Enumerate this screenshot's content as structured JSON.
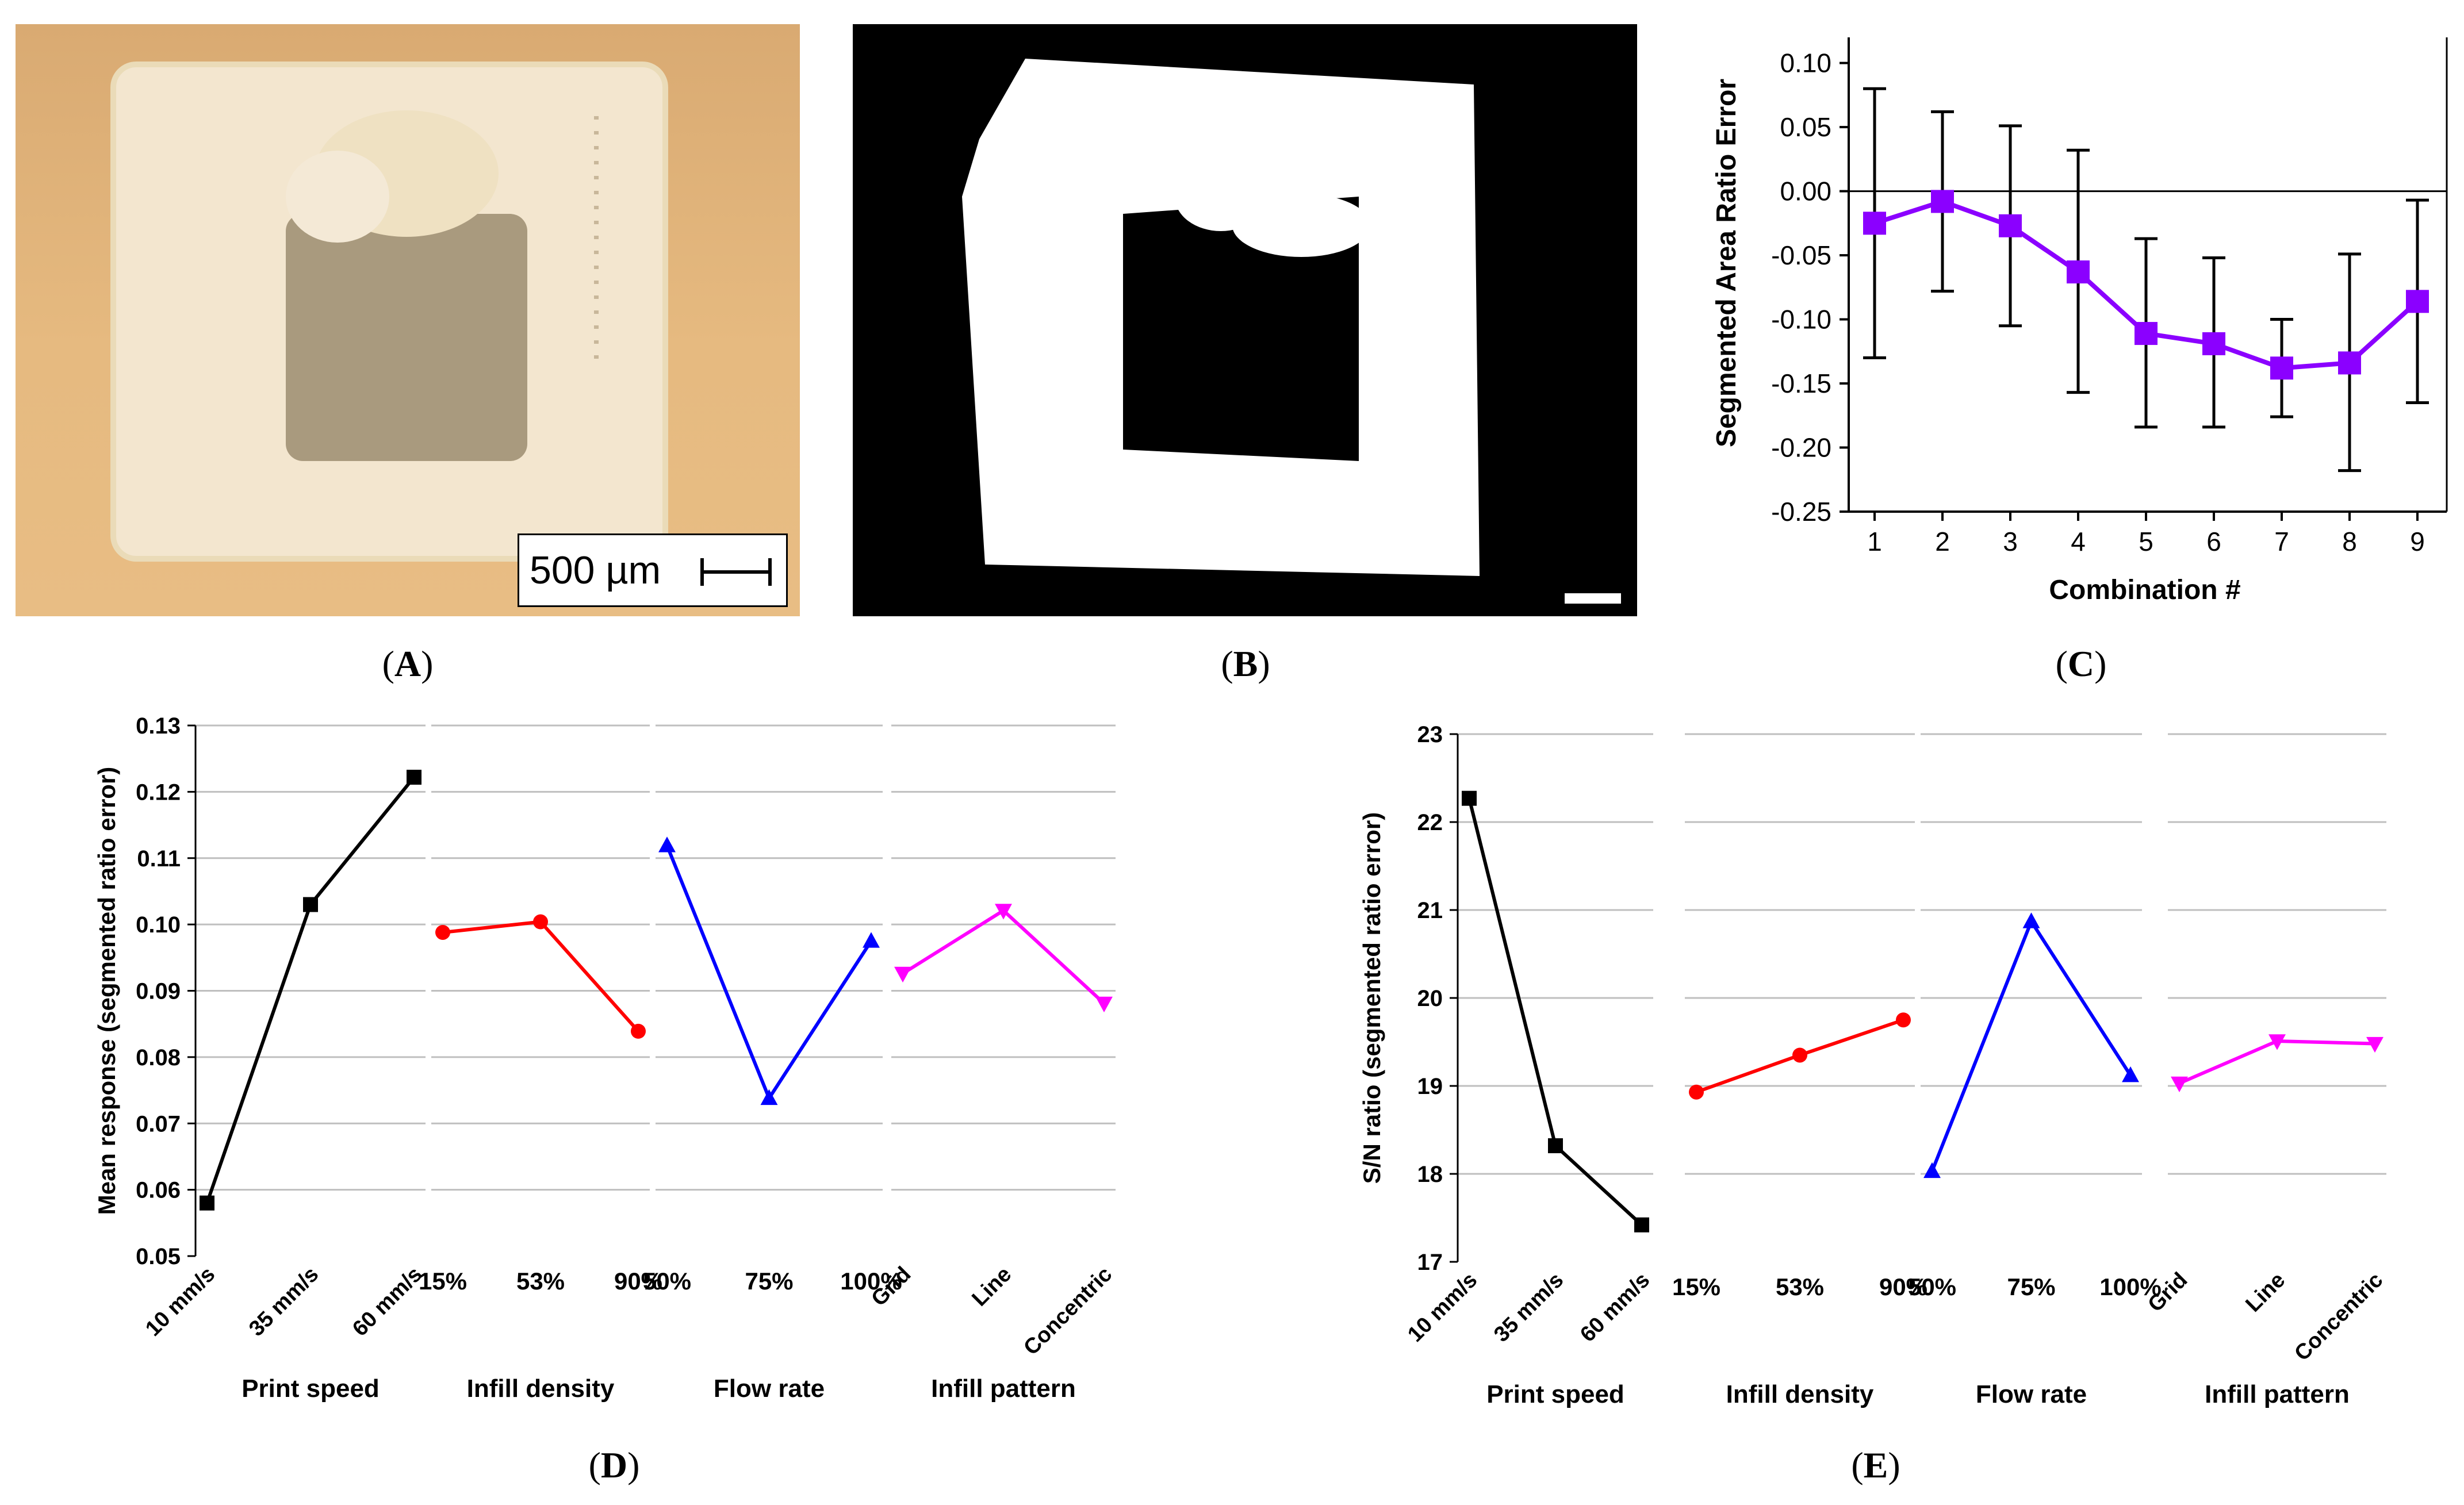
{
  "panels": {
    "a": {
      "label": "A",
      "scale_bar_text": "500 µm"
    },
    "b": {
      "label": "B"
    },
    "c": {
      "label": "C"
    },
    "d": {
      "label": "D"
    },
    "e": {
      "label": "E"
    }
  },
  "colors": {
    "purple": "#8b00ff",
    "black": "#000000",
    "red": "#ff0000",
    "blue": "#0000ff",
    "magenta": "#ff00ff",
    "grid": "#bfbfbf",
    "photo_bg": "#e2b57a",
    "photo_part": "#f3e6cf"
  },
  "chart_data": [
    {
      "id": "C",
      "type": "line",
      "xlabel": "Combination #",
      "ylabel": "Segmented Area Ratio Error",
      "x": [
        1,
        2,
        3,
        4,
        5,
        6,
        7,
        8,
        9
      ],
      "xticks": [
        "1",
        "2",
        "3",
        "4",
        "5",
        "6",
        "7",
        "8",
        "9"
      ],
      "values": [
        -0.025,
        -0.008,
        -0.027,
        -0.063,
        -0.111,
        -0.119,
        -0.138,
        -0.134,
        -0.086
      ],
      "error_upper": [
        0.08,
        0.062,
        0.051,
        0.032,
        -0.037,
        -0.052,
        -0.1,
        -0.049,
        -0.007
      ],
      "error_lower": [
        -0.13,
        -0.078,
        -0.105,
        -0.157,
        -0.184,
        -0.184,
        -0.176,
        -0.218,
        -0.165
      ],
      "yticks": [
        "0.10",
        "0.05",
        "0.00",
        "-0.05",
        "-0.10",
        "-0.15",
        "-0.20",
        "-0.25"
      ],
      "ylim": [
        -0.25,
        0.12
      ],
      "marker": "square",
      "color": "#8b00ff"
    },
    {
      "id": "D",
      "type": "line",
      "ylabel": "Mean response (segmented ratio error)",
      "ylim": [
        0.05,
        0.13
      ],
      "yticks": [
        "0.05",
        "0.06",
        "0.07",
        "0.08",
        "0.09",
        "0.10",
        "0.11",
        "0.12",
        "0.13"
      ],
      "factors": [
        {
          "name": "Print speed",
          "levels": [
            "10 mm/s",
            "35 mm/s",
            "60 mm/s"
          ],
          "values": [
            0.058,
            0.103,
            0.1222
          ],
          "marker": "square",
          "color": "#000000",
          "rotated": true
        },
        {
          "name": "Infill density",
          "levels": [
            "15%",
            "53%",
            "90%"
          ],
          "values": [
            0.0988,
            0.1004,
            0.0839
          ],
          "marker": "circle",
          "color": "#ff0000",
          "rotated": false
        },
        {
          "name": "Flow rate",
          "levels": [
            "50%",
            "75%",
            "100%"
          ],
          "values": [
            0.1119,
            0.0738,
            0.0975
          ],
          "marker": "triangle-up",
          "color": "#0000ff",
          "rotated": false
        },
        {
          "name": "Infill pattern",
          "levels": [
            "Grid",
            "Line",
            "Concentric"
          ],
          "values": [
            0.0926,
            0.1021,
            0.0881
          ],
          "marker": "triangle-down",
          "color": "#ff00ff",
          "rotated": true
        }
      ]
    },
    {
      "id": "E",
      "type": "line",
      "ylabel": "S/N ratio (segmented ratio error)",
      "ylim": [
        17,
        23
      ],
      "yticks": [
        "17",
        "18",
        "19",
        "20",
        "21",
        "22",
        "23"
      ],
      "factors": [
        {
          "name": "Print speed",
          "levels": [
            "10 mm/s",
            "35 mm/s",
            "60 mm/s"
          ],
          "values": [
            22.27,
            18.32,
            17.42
          ],
          "marker": "square",
          "color": "#000000",
          "rotated": true
        },
        {
          "name": "Infill density",
          "levels": [
            "15%",
            "53%",
            "90%"
          ],
          "values": [
            18.93,
            19.35,
            19.75
          ],
          "marker": "circle",
          "color": "#ff0000",
          "rotated": false
        },
        {
          "name": "Flow rate",
          "levels": [
            "50%",
            "75%",
            "100%"
          ],
          "values": [
            18.03,
            20.87,
            19.12
          ],
          "marker": "triangle-up",
          "color": "#0000ff",
          "rotated": false
        },
        {
          "name": "Infill pattern",
          "levels": [
            "Grid",
            "Line",
            "Concentric"
          ],
          "values": [
            19.03,
            19.51,
            19.48
          ],
          "marker": "triangle-down",
          "color": "#ff00ff",
          "rotated": true
        }
      ]
    }
  ]
}
